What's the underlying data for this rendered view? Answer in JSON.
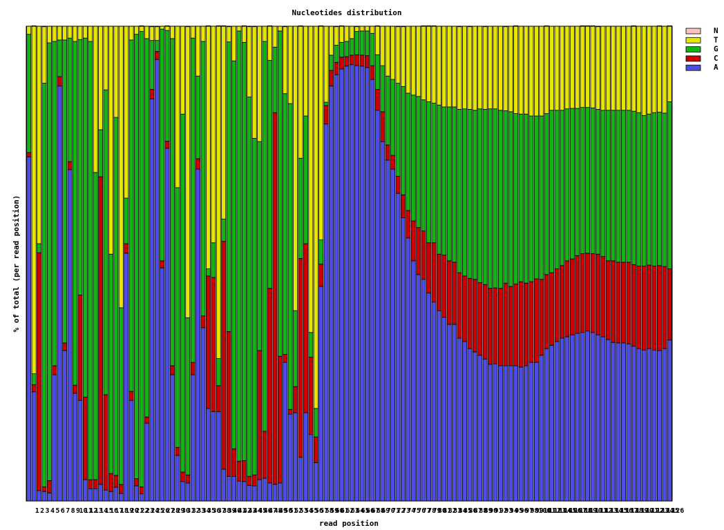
{
  "chart_data": {
    "type": "stacked_bar",
    "title": "Nucleotides distribution",
    "x_label": "read position",
    "y_label": "% of total (per read position)",
    "ylim": [
      0,
      100
    ],
    "categories": [
      "1",
      "2",
      "3",
      "4",
      "5",
      "6",
      "7",
      "8",
      "9",
      "10",
      "11",
      "12",
      "13",
      "14",
      "15",
      "16",
      "17",
      "18",
      "19",
      "20",
      "21",
      "22",
      "23",
      "24",
      "25",
      "26",
      "27",
      "28",
      "29",
      "30",
      "31",
      "32",
      "33",
      "34",
      "35",
      "36",
      "37",
      "38",
      "39",
      "40",
      "41",
      "42",
      "43",
      "44",
      "45",
      "46",
      "47",
      "48",
      "49",
      "50",
      "51",
      "52",
      "53",
      "54",
      "55",
      "56",
      "57",
      "58",
      "59",
      "60",
      "61",
      "62",
      "63",
      "64",
      "65",
      "66",
      "67",
      "68",
      "69",
      "70",
      "71",
      "72",
      "73",
      "74",
      "75",
      "76",
      "77",
      "78",
      "79",
      "80",
      "81",
      "82",
      "83",
      "84",
      "85",
      "86",
      "87",
      "88",
      "89",
      "90",
      "91",
      "92",
      "93",
      "94",
      "95",
      "96",
      "97",
      "98",
      "99",
      "100",
      "101",
      "102",
      "103",
      "104",
      "105",
      "106",
      "107",
      "108",
      "109",
      "110",
      "111",
      "112",
      "113",
      "114",
      "115",
      "116",
      "117",
      "118",
      "119",
      "120",
      "121",
      "122",
      "123",
      "124",
      "125",
      "126"
    ],
    "series": [
      {
        "name": "A",
        "color": "#4d4de6",
        "values": [
          72.5,
          23.0,
          2.2,
          2.0,
          1.7,
          26.6,
          87.4,
          31.7,
          69.8,
          22.7,
          21.2,
          4.5,
          2.6,
          2.6,
          3.5,
          2.3,
          2.0,
          2.9,
          1.6,
          52.2,
          21.2,
          3.2,
          1.5,
          16.4,
          84.7,
          93.0,
          49.1,
          74.3,
          26.6,
          9.6,
          4.1,
          3.8,
          26.6,
          69.9,
          36.5,
          19.5,
          18.8,
          18.8,
          6.7,
          5.2,
          5.2,
          4.2,
          4.1,
          3.3,
          3.2,
          4.5,
          4.8,
          3.8,
          3.5,
          3.8,
          29.2,
          18.3,
          18.6,
          9.2,
          18.6,
          14.0,
          8.1,
          45.2,
          79.4,
          87.4,
          89.8,
          91.0,
          91.6,
          91.9,
          91.7,
          91.6,
          91.3,
          88.8,
          82.3,
          75.7,
          71.8,
          69.9,
          64.8,
          59.7,
          55.4,
          50.6,
          47.7,
          46.7,
          43.8,
          41.9,
          40.1,
          38.7,
          37.2,
          37.2,
          34.3,
          33.6,
          32.1,
          31.4,
          30.7,
          29.9,
          28.8,
          28.9,
          28.5,
          28.5,
          28.5,
          28.5,
          28.2,
          28.5,
          29.2,
          29.2,
          30.7,
          32.1,
          32.8,
          33.6,
          34.3,
          34.6,
          35.0,
          35.3,
          35.5,
          35.8,
          35.5,
          35.0,
          34.6,
          34.0,
          33.4,
          33.3,
          33.3,
          33.1,
          32.6,
          32.1,
          31.8,
          32.1,
          31.8,
          31.7,
          32.1,
          33.9
        ]
      },
      {
        "name": "C",
        "color": "#cc0000",
        "values": [
          0.9,
          1.5,
          50.1,
          1.0,
          2.6,
          1.9,
          2.0,
          1.6,
          1.7,
          1.7,
          22.2,
          17.4,
          1.9,
          1.9,
          64.8,
          20.1,
          3.8,
          2.5,
          1.9,
          2.0,
          1.9,
          1.5,
          1.5,
          1.3,
          2.0,
          1.7,
          1.5,
          1.5,
          1.9,
          1.7,
          2.0,
          1.7,
          2.6,
          2.2,
          2.5,
          27.9,
          28.3,
          5.5,
          48.0,
          30.5,
          5.8,
          4.2,
          4.4,
          1.9,
          2.3,
          27.2,
          9.9,
          41.0,
          78.3,
          26.7,
          1.7,
          1.0,
          5.5,
          41.9,
          35.6,
          16.3,
          5.4,
          4.7,
          3.9,
          3.3,
          2.6,
          2.5,
          2.0,
          2.0,
          2.3,
          2.3,
          2.5,
          2.9,
          4.4,
          6.3,
          3.2,
          2.9,
          3.6,
          4.8,
          5.8,
          8.4,
          9.9,
          10.2,
          10.6,
          12.5,
          11.9,
          13.1,
          13.4,
          13.1,
          13.8,
          13.8,
          14.8,
          15.3,
          15.3,
          15.7,
          16.0,
          16.0,
          16.3,
          17.4,
          16.7,
          17.2,
          18.0,
          17.4,
          17.0,
          17.6,
          16.0,
          15.6,
          15.3,
          15.3,
          15.3,
          16.0,
          16.0,
          16.4,
          16.6,
          16.4,
          16.6,
          17.0,
          16.9,
          16.6,
          17.2,
          17.0,
          17.0,
          17.2,
          17.2,
          17.4,
          17.7,
          17.6,
          17.7,
          17.9,
          17.3,
          15.0
        ]
      },
      {
        "name": "G",
        "color": "#14b414",
        "values": [
          24.9,
          2.3,
          1.9,
          85.0,
          92.2,
          68.3,
          7.7,
          63.8,
          26.0,
          72.4,
          53.8,
          75.6,
          92.3,
          64.7,
          9.9,
          64.2,
          46.2,
          75.4,
          37.2,
          9.6,
          74.0,
          93.6,
          95.9,
          79.7,
          10.3,
          2.3,
          48.8,
          23.3,
          68.9,
          54.7,
          75.4,
          33.1,
          68.3,
          17.4,
          57.8,
          1.5,
          7.3,
          5.7,
          4.7,
          61.0,
          81.7,
          90.6,
          88.1,
          79.9,
          70.9,
          44.0,
          82.1,
          48.0,
          13.8,
          68.5,
          54.9,
          64.4,
          16.0,
          21.1,
          26.9,
          5.2,
          6.0,
          5.1,
          0.7,
          3.2,
          3.6,
          3.1,
          3.2,
          3.5,
          4.9,
          5.1,
          5.2,
          6.8,
          7.3,
          9.7,
          14.5,
          16.0,
          19.6,
          22.8,
          24.7,
          26.5,
          27.6,
          27.6,
          29.7,
          29.4,
          31.4,
          31.2,
          32.4,
          32.7,
          34.4,
          35.2,
          35.6,
          35.6,
          36.6,
          36.9,
          37.8,
          37.7,
          37.5,
          36.3,
          36.8,
          35.9,
          35.3,
          35.6,
          34.9,
          34.3,
          34.4,
          33.9,
          34.2,
          33.4,
          32.7,
          32.0,
          31.7,
          31.0,
          30.8,
          30.7,
          30.7,
          30.5,
          30.8,
          31.7,
          31.7,
          32.0,
          32.0,
          32.0,
          32.3,
          32.3,
          31.7,
          31.8,
          32.3,
          32.3,
          32.3,
          35.2
        ]
      },
      {
        "name": "T",
        "color": "#e6e600",
        "values": [
          1.7,
          73.3,
          45.8,
          11.9,
          3.5,
          3.2,
          2.9,
          2.9,
          2.5,
          3.2,
          2.8,
          2.5,
          3.2,
          30.8,
          21.8,
          13.4,
          48.0,
          19.2,
          59.3,
          36.2,
          2.9,
          1.7,
          1.2,
          2.6,
          2.9,
          2.9,
          0.6,
          1.0,
          2.6,
          34.0,
          18.5,
          61.3,
          2.5,
          10.5,
          3.2,
          51.2,
          45.6,
          70.1,
          40.7,
          3.2,
          7.3,
          1.0,
          3.5,
          14.8,
          23.5,
          24.3,
          3.2,
          7.3,
          4.4,
          1.0,
          14.1,
          16.3,
          59.9,
          27.9,
          18.9,
          64.5,
          80.5,
          45.1,
          16.0,
          6.1,
          3.9,
          3.5,
          3.2,
          2.6,
          1.0,
          1.0,
          1.0,
          1.5,
          6.1,
          8.3,
          10.5,
          11.2,
          11.9,
          12.6,
          14.1,
          14.5,
          14.8,
          15.6,
          16.0,
          16.3,
          16.6,
          17.0,
          17.0,
          17.0,
          17.4,
          17.4,
          17.4,
          17.7,
          17.4,
          17.4,
          17.4,
          17.4,
          17.7,
          17.7,
          18.0,
          18.5,
          18.5,
          18.5,
          18.9,
          18.9,
          18.9,
          18.5,
          17.7,
          17.7,
          17.7,
          17.4,
          17.3,
          17.3,
          17.2,
          17.2,
          17.3,
          17.4,
          17.7,
          17.7,
          17.7,
          17.7,
          17.7,
          17.7,
          18.0,
          18.2,
          18.8,
          18.5,
          18.2,
          18.2,
          18.3,
          16.0
        ]
      },
      {
        "name": "N",
        "color": "#ffc0c0",
        "values": [
          0,
          0,
          0,
          0,
          0,
          0,
          0,
          0,
          0,
          0,
          0,
          0,
          0,
          0,
          0,
          0,
          0,
          0,
          0,
          0,
          0,
          0,
          0,
          0,
          0,
          0,
          0,
          0,
          0,
          0,
          0,
          0,
          0,
          0,
          0,
          0,
          0,
          0,
          0,
          0,
          0,
          0,
          0,
          0,
          0,
          0,
          0,
          0,
          0,
          0,
          0,
          0,
          0,
          0,
          0,
          0,
          0,
          0,
          0,
          0,
          0,
          0,
          0,
          0,
          0,
          0,
          0,
          0,
          0,
          0,
          0,
          0,
          0,
          0,
          0,
          0,
          0,
          0,
          0,
          0,
          0,
          0,
          0,
          0,
          0,
          0,
          0,
          0,
          0,
          0,
          0,
          0,
          0,
          0,
          0,
          0,
          0,
          0,
          0,
          0,
          0,
          0,
          0,
          0,
          0,
          0,
          0,
          0,
          0,
          0,
          0,
          0,
          0,
          0,
          0,
          0,
          0,
          0,
          0,
          0,
          0,
          0,
          0,
          0,
          0,
          0
        ]
      }
    ]
  }
}
